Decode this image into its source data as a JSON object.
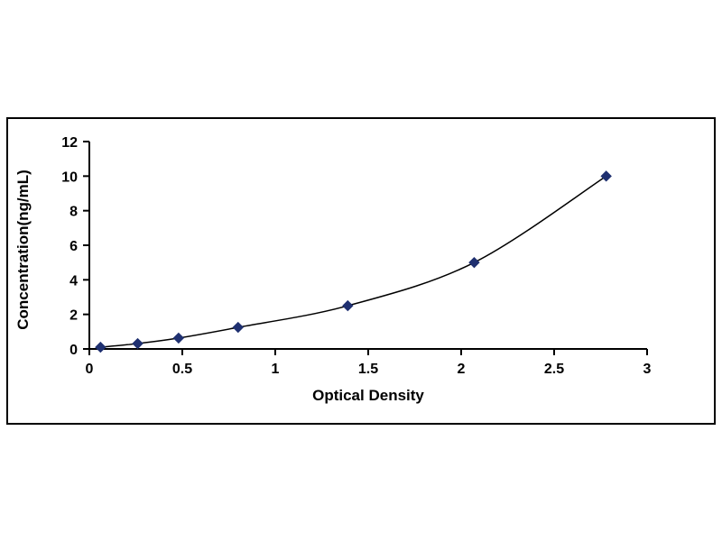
{
  "chart_data": {
    "type": "line",
    "title": "",
    "xlabel": "Optical Density",
    "ylabel": "Concentration(ng/mL)",
    "x": [
      0.06,
      0.26,
      0.48,
      0.8,
      1.39,
      2.07,
      2.78
    ],
    "y": [
      0.1,
      0.31,
      0.63,
      1.25,
      2.5,
      5,
      10
    ],
    "xlim": [
      0,
      3
    ],
    "ylim": [
      0,
      12
    ],
    "xticks": [
      0,
      0.5,
      1,
      1.5,
      2,
      2.5,
      3
    ],
    "yticks": [
      0,
      2,
      4,
      6,
      8,
      10,
      12
    ],
    "xtick_labels": [
      "0",
      "0.5",
      "1",
      "1.5",
      "2",
      "2.5",
      "3"
    ],
    "ytick_labels": [
      "0",
      "2",
      "4",
      "6",
      "8",
      "10",
      "12"
    ],
    "grid": false,
    "legend_position": "none",
    "marker": "diamond",
    "marker_color": "#1F3070",
    "line_color": "#000000",
    "axis_color": "#000000",
    "frame_border_color": "#000000"
  }
}
